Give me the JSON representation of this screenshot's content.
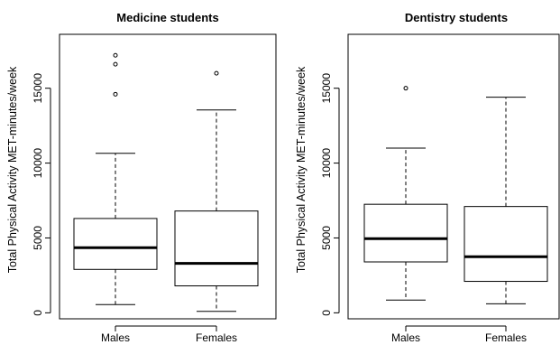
{
  "chart_data": [
    {
      "type": "box",
      "title": "Medicine students",
      "ylabel": "Total Physical Activity MET-minutes/week",
      "xlabel": "",
      "categories": [
        "Males",
        "Females"
      ],
      "ylim": [
        -400,
        18600
      ],
      "yticks": [
        0,
        5000,
        10000,
        15000
      ],
      "boxes": [
        {
          "name": "Males",
          "min": 550,
          "q1": 2900,
          "median": 4350,
          "q3": 6300,
          "max": 10650,
          "outliers": [
            14600,
            16600,
            17200
          ]
        },
        {
          "name": "Females",
          "min": 100,
          "q1": 1800,
          "median": 3300,
          "q3": 6800,
          "max": 13550,
          "outliers": [
            16000
          ]
        }
      ]
    },
    {
      "type": "box",
      "title": "Dentistry students",
      "ylabel": "Total Physical Activity MET-minutes/week",
      "xlabel": "",
      "categories": [
        "Males",
        "Females"
      ],
      "ylim": [
        -400,
        18600
      ],
      "yticks": [
        0,
        5000,
        10000,
        15000
      ],
      "boxes": [
        {
          "name": "Males",
          "min": 850,
          "q1": 3400,
          "median": 4950,
          "q3": 7250,
          "max": 11000,
          "outliers": [
            15000
          ]
        },
        {
          "name": "Females",
          "min": 600,
          "q1": 2100,
          "median": 3750,
          "q3": 7100,
          "max": 14400,
          "outliers": []
        }
      ]
    }
  ]
}
